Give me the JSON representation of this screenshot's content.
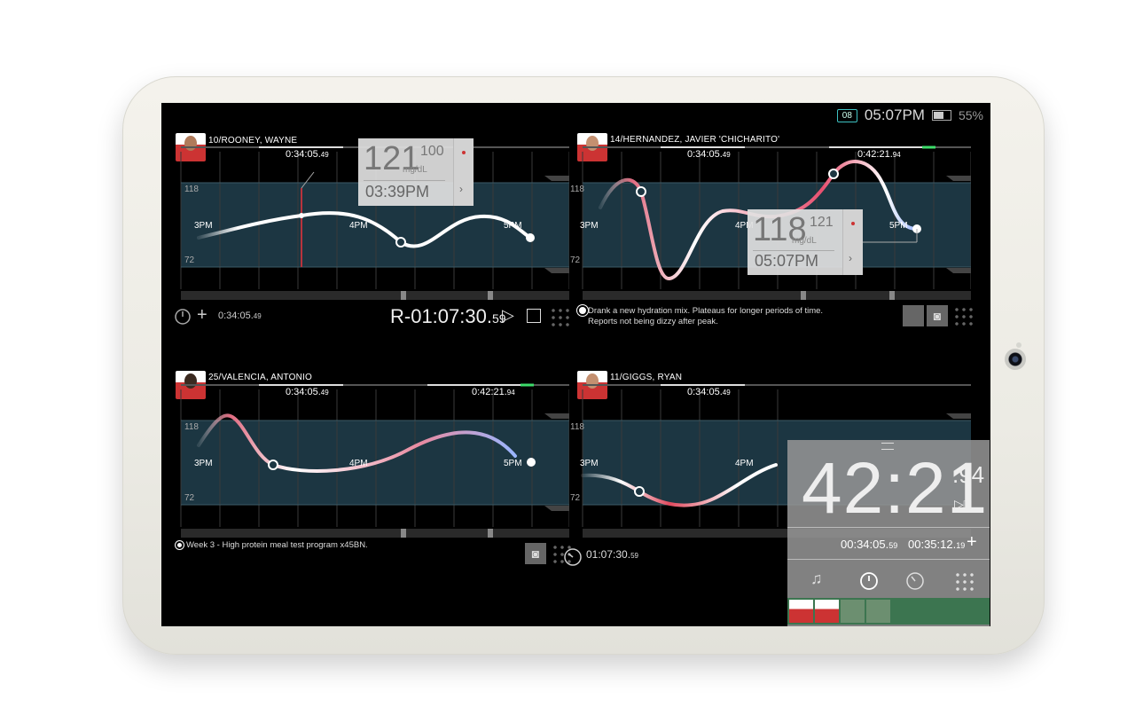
{
  "status": {
    "badge": "08",
    "time": "05:07PM",
    "battery": "55%"
  },
  "panels": [
    {
      "name": "10/ROONEY, WAYNE",
      "top_time": "0:34:05",
      "top_time_cs": "49",
      "y_high": "118",
      "y_low": "72",
      "x_labels": [
        "3PM",
        "4PM",
        "5PM"
      ],
      "popup": {
        "value": "121",
        "target": "100",
        "unit": "mg/dL",
        "time": "03:39PM"
      },
      "bottom_timer": "0:34:05",
      "bottom_timer_cs": "49",
      "recording": "R-01:07:30",
      "recording_cs": "59"
    },
    {
      "name": "14/HERNANDEZ, JAVIER 'CHICHARITO'",
      "top_time": "0:34:05",
      "top_time_cs": "49",
      "top_time2": "0:42:21",
      "top_time2_cs": "94",
      "y_high": "118",
      "y_low": "72",
      "x_labels": [
        "3PM",
        "4PM",
        "5PM"
      ],
      "popup": {
        "value": "118",
        "target": "121",
        "unit": "mg/dL",
        "time": "05:07PM"
      },
      "note_line1": "Drank a new hydration mix. Plateaus for longer periods of time.",
      "note_line2": "Reports not being dizzy after peak."
    },
    {
      "name": "25/VALENCIA, ANTONIO",
      "top_time": "0:34:05",
      "top_time_cs": "49",
      "top_time2": "0:42:21",
      "top_time2_cs": "94",
      "y_high": "118",
      "y_low": "72",
      "x_labels": [
        "3PM",
        "4PM",
        "5PM"
      ],
      "note": "Week 3 - High protein meal test program x45BN."
    },
    {
      "name": "11/GIGGS, RYAN",
      "top_time": "0:34:05",
      "top_time_cs": "49",
      "y_high": "118",
      "y_low": "72",
      "x_labels": [
        "3PM",
        "4PM"
      ],
      "bottom_timer": "01:07:30",
      "bottom_timer_cs": "59"
    }
  ],
  "stopwatch": {
    "main": "42:21",
    "main_cs": ".94",
    "lap1": "00:34:05",
    "lap1_cs": "59",
    "lap2": "00:35:12",
    "lap2_cs": "19"
  },
  "colors": {
    "panel_band": "#1c3642",
    "accent_green": "#3ddc6a",
    "curve_high": "#e0485e"
  }
}
